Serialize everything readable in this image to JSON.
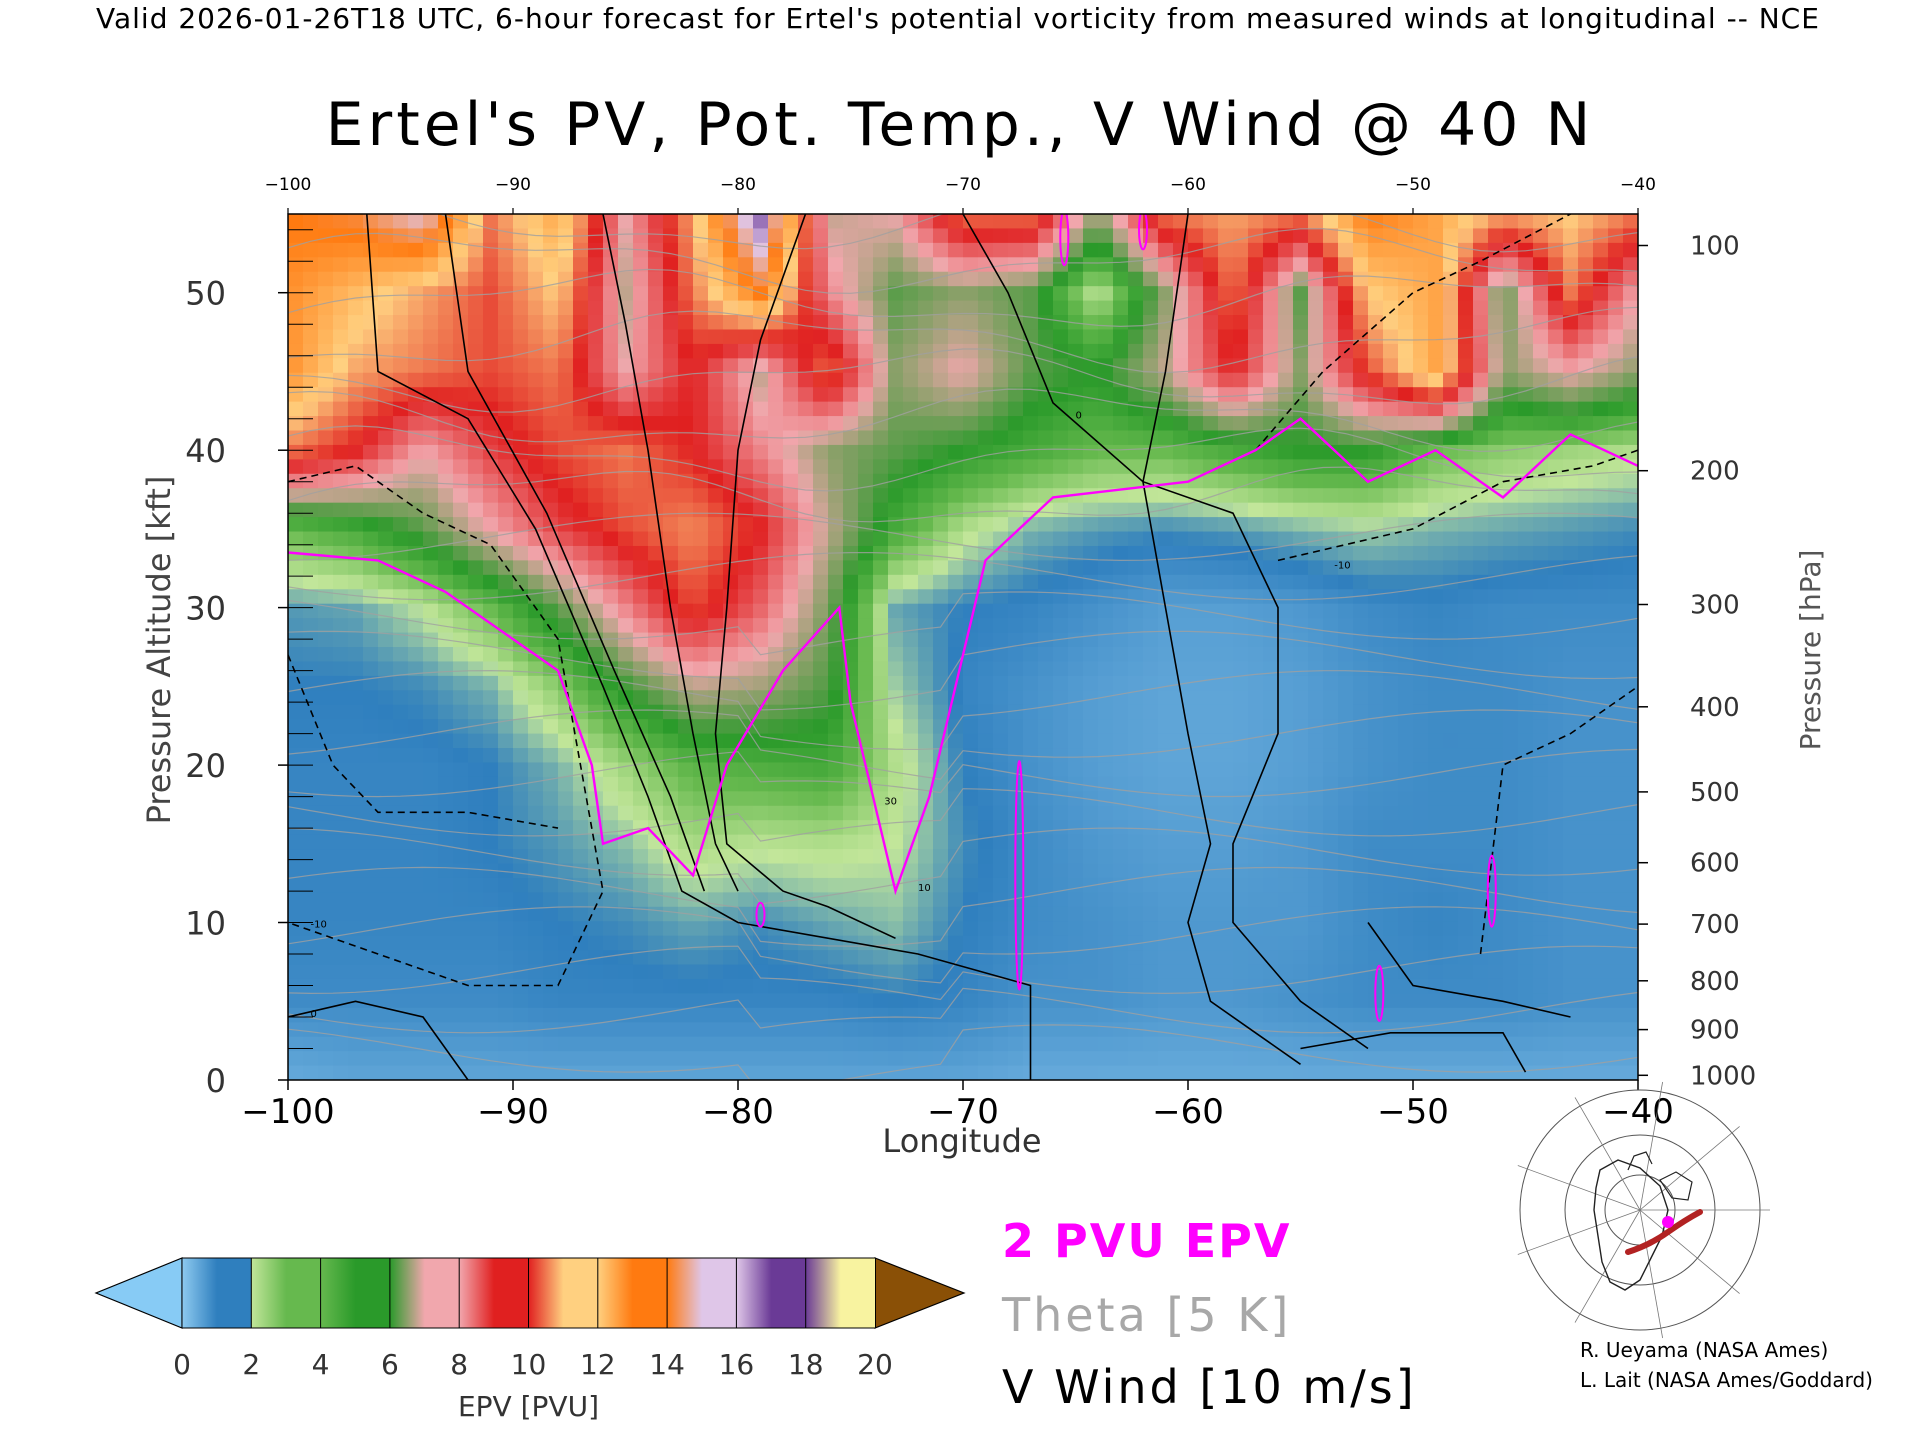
{
  "header": "Valid 2026-01-26T18 UTC, 6-hour forecast for Ertel's potential vorticity from measured winds at longitudinal -- NCE",
  "chart_data": {
    "type": "heatmap",
    "title": "Ertel's PV, Pot. Temp., V Wind @ 40 N",
    "xlabel": "Longitude",
    "ylabel_left": "Pressure Altitude [kft]",
    "ylabel_right": "Pressure [hPa]",
    "x_range": [
      -100,
      -40
    ],
    "y_range_kft": [
      0,
      55
    ],
    "x_ticks": [
      -100,
      -90,
      -80,
      -70,
      -60,
      -50,
      -40
    ],
    "x_ticks_top": [
      -100,
      -90,
      -80,
      -70,
      -60,
      -50,
      -40
    ],
    "y_ticks_left": [
      0,
      10,
      20,
      30,
      40,
      50
    ],
    "y_ticks_right": [
      {
        "label": "100",
        "kft": 53.0
      },
      {
        "label": "200",
        "kft": 38.7
      },
      {
        "label": "300",
        "kft": 30.2
      },
      {
        "label": "400",
        "kft": 23.7
      },
      {
        "label": "500",
        "kft": 18.3
      },
      {
        "label": "600",
        "kft": 13.8
      },
      {
        "label": "700",
        "kft": 9.9
      },
      {
        "label": "800",
        "kft": 6.3
      },
      {
        "label": "900",
        "kft": 3.2
      },
      {
        "label": "1000",
        "kft": 0.3
      }
    ],
    "epv_field": {
      "units": "PVU",
      "x": [
        -100,
        -97,
        -94,
        -91,
        -88,
        -85,
        -82,
        -79,
        -76,
        -73,
        -70,
        -67,
        -64,
        -61,
        -58,
        -55,
        -52,
        -49,
        -46,
        -43,
        -40
      ],
      "y": [
        0,
        5,
        10,
        15,
        20,
        25,
        30,
        35,
        40,
        45,
        50,
        55
      ],
      "values": [
        [
          0.5,
          0.6,
          0.6,
          0.6,
          0.6,
          0.6,
          0.6,
          0.6,
          0.6,
          0.6,
          0.6,
          0.5,
          0.5,
          0.5,
          0.5,
          0.5,
          0.5,
          0.5,
          0.5,
          0.5,
          0.5
        ],
        [
          1.0,
          1.0,
          1.0,
          1.0,
          1.1,
          1.1,
          1.1,
          1.1,
          1.1,
          1.2,
          1.1,
          0.9,
          0.9,
          0.8,
          0.8,
          0.9,
          1.0,
          1.0,
          1.0,
          0.9,
          0.9
        ],
        [
          1.1,
          1.1,
          1.1,
          1.1,
          1.2,
          1.3,
          1.5,
          1.3,
          1.5,
          1.7,
          1.2,
          1.0,
          0.9,
          0.8,
          0.8,
          0.8,
          1.0,
          1.1,
          1.0,
          0.9,
          0.9
        ],
        [
          1.1,
          1.1,
          1.1,
          1.2,
          1.4,
          1.7,
          2.3,
          2.1,
          2.2,
          2.0,
          1.3,
          1.0,
          0.8,
          0.7,
          0.7,
          0.8,
          1.0,
          1.0,
          1.0,
          0.9,
          0.9
        ],
        [
          1.1,
          1.1,
          1.1,
          1.2,
          1.6,
          2.4,
          3.2,
          3.4,
          3.6,
          2.2,
          1.2,
          0.9,
          0.7,
          0.6,
          0.6,
          0.7,
          0.9,
          1.0,
          1.0,
          0.9,
          0.9
        ],
        [
          1.2,
          1.2,
          1.3,
          1.6,
          2.6,
          4.2,
          5.5,
          5.2,
          4.4,
          1.8,
          1.1,
          0.9,
          0.7,
          0.6,
          0.6,
          0.7,
          0.9,
          1.0,
          1.0,
          0.9,
          0.9
        ],
        [
          1.4,
          1.5,
          2.0,
          3.0,
          4.5,
          6.5,
          8.5,
          7.0,
          4.8,
          1.5,
          1.2,
          1.1,
          0.9,
          0.7,
          0.7,
          0.8,
          1.0,
          1.1,
          1.0,
          1.0,
          1.0
        ],
        [
          3.0,
          3.5,
          4.5,
          6.0,
          7.5,
          8.5,
          9.2,
          8.0,
          5.5,
          3.5,
          2.2,
          1.6,
          1.4,
          1.3,
          1.4,
          1.6,
          1.8,
          1.6,
          1.5,
          1.4,
          1.3
        ],
        [
          9.0,
          8.0,
          6.0,
          7.5,
          8.5,
          9.0,
          8.0,
          6.5,
          5.0,
          4.5,
          4.0,
          3.5,
          3.0,
          3.0,
          3.5,
          4.0,
          4.0,
          3.0,
          2.6,
          2.4,
          2.2
        ],
        [
          11.5,
          9.5,
          9.0,
          8.5,
          9.0,
          6.0,
          8.0,
          5.5,
          9.0,
          5.0,
          6.0,
          4.5,
          4.0,
          5.5,
          8.0,
          5.0,
          8.5,
          11.0,
          5.0,
          6.0,
          5.0
        ],
        [
          11.5,
          10.5,
          9.5,
          8.5,
          10.0,
          5.5,
          9.0,
          12.0,
          6.5,
          4.5,
          5.0,
          4.5,
          2.0,
          5.0,
          9.0,
          4.5,
          10.0,
          11.0,
          4.5,
          9.0,
          6.0
        ],
        [
          12.0,
          12.5,
          14.0,
          9.0,
          11.0,
          6.0,
          9.5,
          15.5,
          5.5,
          6.0,
          9.0,
          9.0,
          5.0,
          9.0,
          9.5,
          9.0,
          12.0,
          11.0,
          9.5,
          10.0,
          9.0
        ]
      ]
    },
    "contours": {
      "epv_2pvu": "2 PVU EPV",
      "theta_interval": "Theta [5 K]",
      "vwind_interval": "V Wind [10 m/s]",
      "vwind_labels": [
        "-10",
        "0",
        "10",
        "30",
        "-10",
        "0"
      ]
    },
    "colorbar": {
      "label": "EPV [PVU]",
      "ticks": [
        "0",
        "2",
        "4",
        "6",
        "8",
        "10",
        "12",
        "14",
        "16",
        "18",
        "20"
      ],
      "under_color": "#87cbf5",
      "over_color": "#8a5006",
      "bands": [
        [
          "#8ecaf0",
          "#2f7fbe"
        ],
        [
          "#2f7fbe",
          "#c2e69a"
        ],
        [
          "#c2e69a",
          "#66b94e"
        ],
        [
          "#66b94e",
          "#2a9a2a"
        ],
        [
          "#2a9a2a",
          "#f1a7ad"
        ],
        [
          "#f1a7ad",
          "#e02020"
        ],
        [
          "#e02020",
          "#ffd080"
        ],
        [
          "#ffd080",
          "#ff7a10"
        ],
        [
          "#ff7a10",
          "#dfc6e8"
        ],
        [
          "#dfc6e8",
          "#6a3a96"
        ],
        [
          "#6a3a96",
          "#f8f3a0"
        ],
        [
          "#f8f3a0",
          "#c8963a"
        ]
      ]
    }
  },
  "legend": {
    "epv": "2 PVU EPV",
    "theta": "Theta [5 K]",
    "vwind": "V Wind [10 m/s]",
    "epv_color": "#ff00ff",
    "theta_color": "#a8a8a8",
    "vwind_color": "#000000"
  },
  "credits": {
    "line1": "R. Ueyama (NASA Ames)",
    "line2": "L. Lait (NASA Ames/Goddard)"
  },
  "locator_map": {
    "path_color": "#b22222",
    "marker_color": "#ff00ff"
  }
}
